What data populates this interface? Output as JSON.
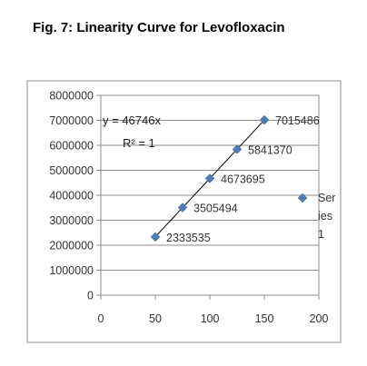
{
  "figure_title": "Fig. 7: Linearity Curve for Levofloxacin",
  "chart_data": {
    "type": "scatter",
    "title": "",
    "xlabel": "",
    "ylabel": "",
    "xlim": [
      0,
      200
    ],
    "ylim": [
      0,
      8000000
    ],
    "x_ticks": [
      "0",
      "50",
      "100",
      "150",
      "200"
    ],
    "y_ticks": [
      "0",
      "1000000",
      "2000000",
      "3000000",
      "4000000",
      "5000000",
      "6000000",
      "7000000",
      "8000000"
    ],
    "grid": "horizontal",
    "legend": "right",
    "marker_color": "#4a7ebb",
    "series": [
      {
        "legend_lines": [
          "Ser",
          "ies",
          "1"
        ],
        "x": [
          50,
          75,
          100,
          125,
          150
        ],
        "y": [
          2333535,
          3505494,
          4673695,
          5841370,
          7015486
        ],
        "labels": [
          "2333535",
          "3505494",
          "4673695",
          "5841370",
          "7015486"
        ]
      }
    ],
    "trendline": {
      "equation": "y = 46746x",
      "r_squared": "R² = 1",
      "slope": 46746
    }
  }
}
